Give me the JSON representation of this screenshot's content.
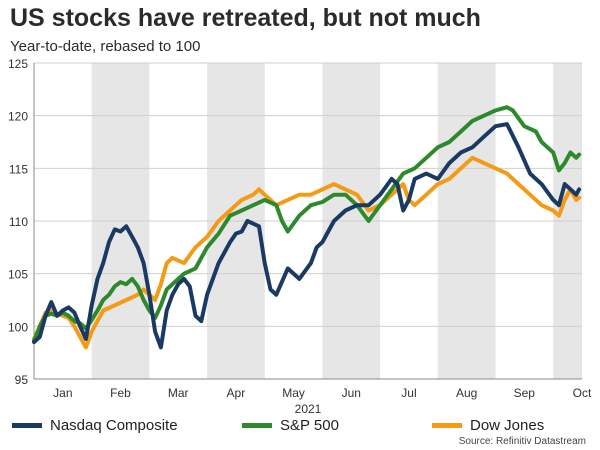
{
  "header": {
    "title": "US stocks have retreated, but not much",
    "subtitle": "Year-to-date, rebased to 100"
  },
  "source": "Source: Refinitiv Datastream",
  "chart_data": {
    "type": "line",
    "title": "US stocks have retreated, but not much",
    "subtitle": "Year-to-date, rebased to 100",
    "xlabel": "2021",
    "ylabel": "",
    "ylim": [
      95,
      125
    ],
    "yticks": [
      95,
      100,
      105,
      110,
      115,
      120,
      125
    ],
    "xlim": [
      0,
      9.5
    ],
    "months": [
      "Jan",
      "Feb",
      "Mar",
      "Apr",
      "May",
      "Jun",
      "Jul",
      "Aug",
      "Sep",
      "Oct"
    ],
    "shaded_months": [
      "Feb",
      "Apr",
      "Jun",
      "Aug",
      "Oct"
    ],
    "grid": true,
    "legend_position": "bottom",
    "x_unit": "months since 1 Jan 2021",
    "series": [
      {
        "name": "Nasdaq Composite",
        "color": "#1b3a63",
        "points": [
          [
            0.0,
            98.5
          ],
          [
            0.1,
            99.0
          ],
          [
            0.2,
            101.0
          ],
          [
            0.3,
            102.3
          ],
          [
            0.4,
            101.0
          ],
          [
            0.5,
            101.5
          ],
          [
            0.6,
            101.8
          ],
          [
            0.7,
            101.3
          ],
          [
            0.8,
            100.0
          ],
          [
            0.9,
            98.8
          ],
          [
            1.0,
            102.0
          ],
          [
            1.1,
            104.5
          ],
          [
            1.2,
            106.0
          ],
          [
            1.3,
            108.0
          ],
          [
            1.4,
            109.2
          ],
          [
            1.5,
            109.0
          ],
          [
            1.6,
            109.5
          ],
          [
            1.7,
            108.5
          ],
          [
            1.8,
            107.5
          ],
          [
            1.9,
            106.0
          ],
          [
            2.0,
            103.0
          ],
          [
            2.1,
            99.5
          ],
          [
            2.2,
            98.0
          ],
          [
            2.3,
            101.5
          ],
          [
            2.4,
            103.0
          ],
          [
            2.5,
            104.0
          ],
          [
            2.6,
            104.5
          ],
          [
            2.7,
            103.8
          ],
          [
            2.8,
            101.0
          ],
          [
            2.9,
            100.5
          ],
          [
            3.0,
            103.0
          ],
          [
            3.2,
            106.0
          ],
          [
            3.4,
            108.0
          ],
          [
            3.5,
            108.8
          ],
          [
            3.6,
            109.0
          ],
          [
            3.7,
            110.0
          ],
          [
            3.9,
            109.5
          ],
          [
            4.0,
            106.0
          ],
          [
            4.1,
            103.5
          ],
          [
            4.2,
            103.0
          ],
          [
            4.4,
            105.5
          ],
          [
            4.6,
            104.5
          ],
          [
            4.8,
            106.0
          ],
          [
            4.9,
            107.5
          ],
          [
            5.0,
            108.0
          ],
          [
            5.2,
            110.0
          ],
          [
            5.4,
            111.0
          ],
          [
            5.6,
            111.5
          ],
          [
            5.8,
            111.5
          ],
          [
            6.0,
            112.5
          ],
          [
            6.2,
            114.0
          ],
          [
            6.3,
            113.5
          ],
          [
            6.4,
            111.0
          ],
          [
            6.5,
            112.0
          ],
          [
            6.6,
            114.0
          ],
          [
            6.8,
            114.5
          ],
          [
            7.0,
            114.0
          ],
          [
            7.2,
            115.5
          ],
          [
            7.4,
            116.5
          ],
          [
            7.6,
            117.0
          ],
          [
            7.8,
            118.0
          ],
          [
            8.0,
            119.0
          ],
          [
            8.2,
            119.2
          ],
          [
            8.4,
            117.0
          ],
          [
            8.6,
            114.5
          ],
          [
            8.8,
            113.5
          ],
          [
            9.0,
            112.0
          ],
          [
            9.1,
            111.5
          ],
          [
            9.2,
            113.5
          ],
          [
            9.3,
            113.0
          ],
          [
            9.4,
            112.5
          ],
          [
            9.45,
            113.0
          ]
        ]
      },
      {
        "name": "S&P 500",
        "color": "#2c8a2c",
        "points": [
          [
            0.0,
            98.6
          ],
          [
            0.1,
            100.0
          ],
          [
            0.2,
            101.0
          ],
          [
            0.3,
            101.2
          ],
          [
            0.4,
            101.0
          ],
          [
            0.5,
            101.3
          ],
          [
            0.6,
            101.0
          ],
          [
            0.7,
            100.5
          ],
          [
            0.8,
            100.3
          ],
          [
            0.9,
            99.8
          ],
          [
            1.0,
            100.6
          ],
          [
            1.1,
            101.5
          ],
          [
            1.2,
            102.5
          ],
          [
            1.3,
            103.0
          ],
          [
            1.4,
            103.8
          ],
          [
            1.5,
            104.2
          ],
          [
            1.6,
            104.0
          ],
          [
            1.7,
            104.5
          ],
          [
            1.8,
            103.8
          ],
          [
            1.9,
            102.5
          ],
          [
            2.0,
            101.5
          ],
          [
            2.1,
            100.8
          ],
          [
            2.2,
            102.0
          ],
          [
            2.3,
            103.5
          ],
          [
            2.4,
            104.0
          ],
          [
            2.6,
            105.0
          ],
          [
            2.8,
            105.5
          ],
          [
            3.0,
            107.5
          ],
          [
            3.2,
            108.8
          ],
          [
            3.4,
            110.5
          ],
          [
            3.6,
            111.0
          ],
          [
            3.8,
            111.5
          ],
          [
            4.0,
            112.0
          ],
          [
            4.2,
            111.5
          ],
          [
            4.3,
            110.0
          ],
          [
            4.4,
            109.0
          ],
          [
            4.6,
            110.5
          ],
          [
            4.8,
            111.5
          ],
          [
            5.0,
            111.8
          ],
          [
            5.2,
            112.5
          ],
          [
            5.4,
            112.5
          ],
          [
            5.6,
            111.5
          ],
          [
            5.8,
            110.0
          ],
          [
            6.0,
            111.5
          ],
          [
            6.2,
            113.0
          ],
          [
            6.4,
            114.5
          ],
          [
            6.6,
            115.0
          ],
          [
            6.8,
            116.0
          ],
          [
            7.0,
            117.0
          ],
          [
            7.2,
            117.5
          ],
          [
            7.4,
            118.5
          ],
          [
            7.6,
            119.5
          ],
          [
            7.8,
            120.0
          ],
          [
            8.0,
            120.5
          ],
          [
            8.2,
            120.8
          ],
          [
            8.3,
            120.5
          ],
          [
            8.5,
            119.0
          ],
          [
            8.7,
            118.5
          ],
          [
            8.8,
            117.5
          ],
          [
            9.0,
            116.5
          ],
          [
            9.1,
            114.8
          ],
          [
            9.2,
            115.5
          ],
          [
            9.3,
            116.5
          ],
          [
            9.4,
            116.0
          ],
          [
            9.45,
            116.3
          ]
        ]
      },
      {
        "name": "Dow Jones",
        "color": "#f59a14",
        "points": [
          [
            0.0,
            98.8
          ],
          [
            0.1,
            100.0
          ],
          [
            0.2,
            101.3
          ],
          [
            0.3,
            101.5
          ],
          [
            0.4,
            101.2
          ],
          [
            0.5,
            101.0
          ],
          [
            0.6,
            100.8
          ],
          [
            0.7,
            100.0
          ],
          [
            0.8,
            99.0
          ],
          [
            0.9,
            98.0
          ],
          [
            1.0,
            99.5
          ],
          [
            1.2,
            101.5
          ],
          [
            1.4,
            102.0
          ],
          [
            1.6,
            102.5
          ],
          [
            1.8,
            103.0
          ],
          [
            1.9,
            103.5
          ],
          [
            2.0,
            103.0
          ],
          [
            2.1,
            102.5
          ],
          [
            2.2,
            104.0
          ],
          [
            2.3,
            106.0
          ],
          [
            2.4,
            106.5
          ],
          [
            2.6,
            106.0
          ],
          [
            2.8,
            107.5
          ],
          [
            3.0,
            108.5
          ],
          [
            3.2,
            110.0
          ],
          [
            3.4,
            111.0
          ],
          [
            3.5,
            111.5
          ],
          [
            3.6,
            112.0
          ],
          [
            3.8,
            112.5
          ],
          [
            3.9,
            113.0
          ],
          [
            4.0,
            112.5
          ],
          [
            4.2,
            111.5
          ],
          [
            4.4,
            112.0
          ],
          [
            4.6,
            112.5
          ],
          [
            4.8,
            112.5
          ],
          [
            5.0,
            113.0
          ],
          [
            5.2,
            113.5
          ],
          [
            5.4,
            113.0
          ],
          [
            5.6,
            112.5
          ],
          [
            5.8,
            111.0
          ],
          [
            6.0,
            111.5
          ],
          [
            6.2,
            112.5
          ],
          [
            6.4,
            113.5
          ],
          [
            6.5,
            112.0
          ],
          [
            6.6,
            111.5
          ],
          [
            6.8,
            112.5
          ],
          [
            7.0,
            113.5
          ],
          [
            7.2,
            114.0
          ],
          [
            7.4,
            115.0
          ],
          [
            7.6,
            116.0
          ],
          [
            7.8,
            115.5
          ],
          [
            8.0,
            115.0
          ],
          [
            8.2,
            114.5
          ],
          [
            8.4,
            113.5
          ],
          [
            8.6,
            112.5
          ],
          [
            8.8,
            111.5
          ],
          [
            9.0,
            111.0
          ],
          [
            9.1,
            110.5
          ],
          [
            9.2,
            112.0
          ],
          [
            9.3,
            113.0
          ],
          [
            9.4,
            112.0
          ],
          [
            9.45,
            112.2
          ]
        ]
      }
    ]
  }
}
